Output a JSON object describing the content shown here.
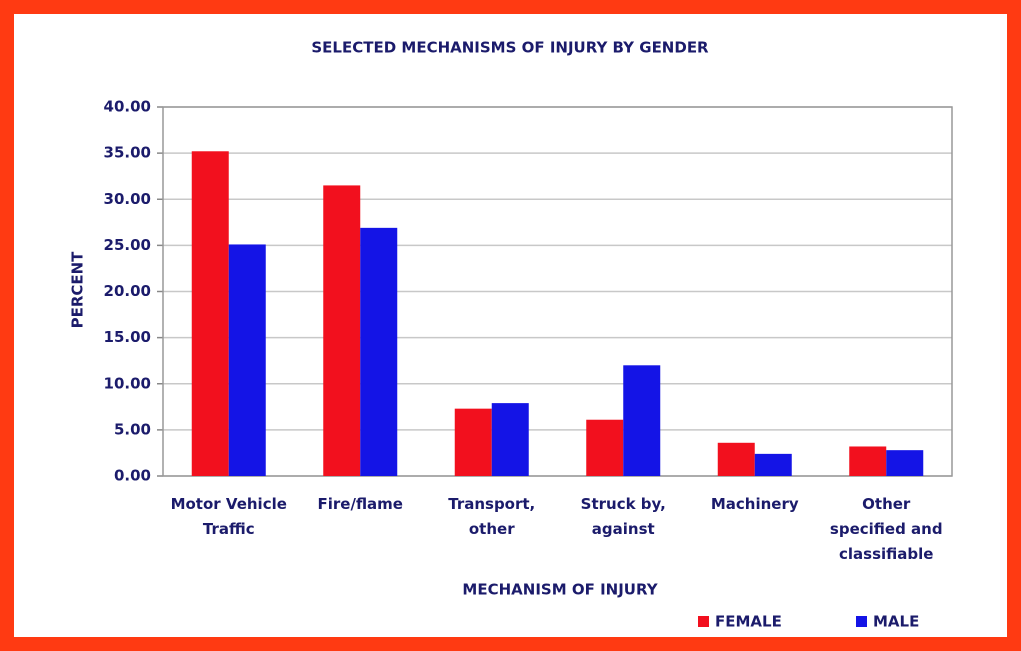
{
  "chart_data": {
    "type": "bar",
    "title": "SELECTED MECHANISMS OF INJURY BY GENDER",
    "x_label": "MECHANISM OF INJURY",
    "y_label": "PERCENT",
    "categories": [
      "Motor Vehicle Traffic",
      "Fire/flame",
      "Transport, other",
      "Struck by, against",
      "Machinery",
      "Other specified and classifiable"
    ],
    "series": [
      {
        "name": "FEMALE",
        "color": "#f2101e",
        "values": [
          35.2,
          31.5,
          7.3,
          6.1,
          3.6,
          3.2
        ]
      },
      {
        "name": "MALE",
        "color": "#1414e6",
        "values": [
          25.1,
          26.9,
          7.9,
          12.0,
          2.4,
          2.8
        ]
      }
    ],
    "ylim": [
      0,
      40
    ],
    "yticks": [
      {
        "value": 0,
        "label": "0.00"
      },
      {
        "value": 5,
        "label": "5.00"
      },
      {
        "value": 10,
        "label": "10.00"
      },
      {
        "value": 15,
        "label": "15.00"
      },
      {
        "value": 20,
        "label": "20.00"
      },
      {
        "value": 25,
        "label": "25.00"
      },
      {
        "value": 30,
        "label": "30.00"
      },
      {
        "value": 35,
        "label": "35.00"
      },
      {
        "value": 40,
        "label": "40.00"
      }
    ],
    "grid": true,
    "legend": "bottom-right"
  }
}
